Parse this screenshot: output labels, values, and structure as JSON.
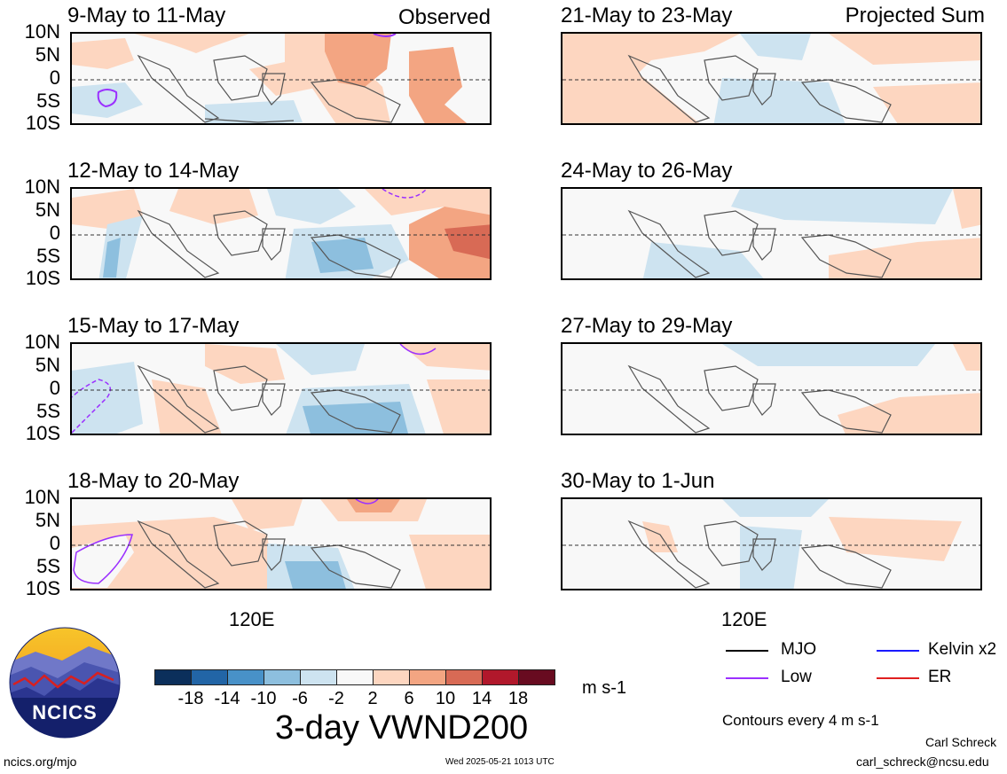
{
  "panels": {
    "left": [
      {
        "title": "9-May to 11-May",
        "tag": "Observed"
      },
      {
        "title": "12-May to 14-May",
        "tag": ""
      },
      {
        "title": "15-May to 17-May",
        "tag": ""
      },
      {
        "title": "18-May to 20-May",
        "tag": ""
      }
    ],
    "right": [
      {
        "title": "21-May to 23-May",
        "tag": "Projected Sum"
      },
      {
        "title": "24-May to 26-May",
        "tag": ""
      },
      {
        "title": "27-May to 29-May",
        "tag": ""
      },
      {
        "title": "30-May to 1-Jun",
        "tag": ""
      }
    ]
  },
  "lat_labels": [
    "10N",
    "5N",
    "0",
    "5S",
    "10S"
  ],
  "lon_label": "120E",
  "colorbar": {
    "ticks": [
      "-18",
      "-14",
      "-10",
      "-6",
      "-2",
      "2",
      "6",
      "10",
      "14",
      "18"
    ],
    "colors": [
      "#0b2f5b",
      "#2265a6",
      "#4891c8",
      "#8dbfde",
      "#cde3f0",
      "#f8f8f8",
      "#fdd6c0",
      "#f3a582",
      "#d86a55",
      "#b1182b",
      "#680b20"
    ],
    "units": "m s-1",
    "title": "3-day VWND200"
  },
  "legend": {
    "items": [
      {
        "label": "MJO",
        "color": "#000000"
      },
      {
        "label": "Kelvin x2",
        "color": "#1a1aff"
      },
      {
        "label": "Low",
        "color": "#9b30ff"
      },
      {
        "label": "ER",
        "color": "#e02020"
      }
    ],
    "contours_note": "Contours every 4 m s-1"
  },
  "logo": {
    "text": "NCICS"
  },
  "footer": {
    "url": "ncics.org/mjo",
    "timestamp": "Wed 2025-05-21 1013 UTC",
    "author": "Carl Schreck",
    "email": "carl_schreck@ncsu.edu"
  }
}
